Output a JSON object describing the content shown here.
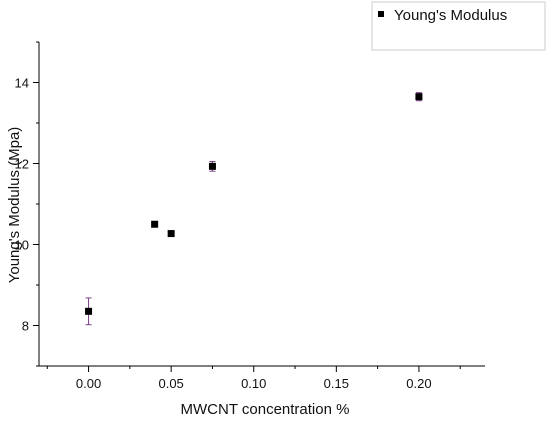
{
  "chart_data": {
    "type": "scatter",
    "title": "",
    "xlabel": "MWCNT concentration %",
    "ylabel": "Young's Modulus (Mpa)",
    "xlim": [
      -0.03,
      0.24
    ],
    "ylim": [
      7,
      15
    ],
    "x_ticks": [
      0.0,
      0.05,
      0.1,
      0.15,
      0.2
    ],
    "x_tick_labels": [
      "0.00",
      "0.05",
      "0.10",
      "0.15",
      "0.20"
    ],
    "y_ticks": [
      8,
      10,
      12,
      14
    ],
    "y_tick_labels": [
      "8",
      "10",
      "12",
      "14"
    ],
    "grid": false,
    "legend_position": "top-right-outside",
    "series": [
      {
        "name": "Young's Modulus",
        "color": "#000000",
        "error_bar_color": "#7a3f8a",
        "marker": "square",
        "x": [
          0.0,
          0.04,
          0.05,
          0.075,
          0.2
        ],
        "y": [
          8.35,
          10.5,
          10.27,
          11.93,
          13.65
        ],
        "y_error": [
          0.33,
          0.05,
          0.05,
          0.12,
          0.1
        ]
      }
    ]
  }
}
